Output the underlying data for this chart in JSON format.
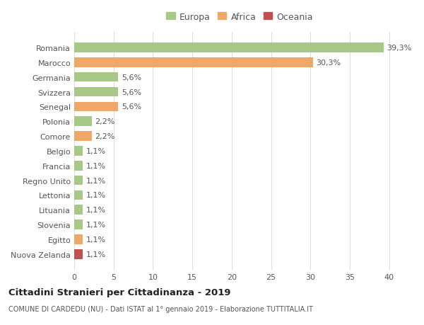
{
  "categories": [
    "Nuova Zelanda",
    "Egitto",
    "Slovenia",
    "Lituania",
    "Lettonia",
    "Regno Unito",
    "Francia",
    "Belgio",
    "Comore",
    "Polonia",
    "Senegal",
    "Svizzera",
    "Germania",
    "Marocco",
    "Romania"
  ],
  "values": [
    1.1,
    1.1,
    1.1,
    1.1,
    1.1,
    1.1,
    1.1,
    1.1,
    2.2,
    2.2,
    5.6,
    5.6,
    5.6,
    30.3,
    39.3
  ],
  "colors": [
    "#c0504d",
    "#f0a868",
    "#a8c888",
    "#a8c888",
    "#a8c888",
    "#a8c888",
    "#a8c888",
    "#a8c888",
    "#f0a868",
    "#a8c888",
    "#f0a868",
    "#a8c888",
    "#a8c888",
    "#f0a868",
    "#a8c888"
  ],
  "labels": [
    "1,1%",
    "1,1%",
    "1,1%",
    "1,1%",
    "1,1%",
    "1,1%",
    "1,1%",
    "1,1%",
    "2,2%",
    "2,2%",
    "5,6%",
    "5,6%",
    "5,6%",
    "30,3%",
    "39,3%"
  ],
  "legend": [
    {
      "label": "Europa",
      "color": "#a8c888"
    },
    {
      "label": "Africa",
      "color": "#f0a868"
    },
    {
      "label": "Oceania",
      "color": "#c0504d"
    }
  ],
  "title": "Cittadini Stranieri per Cittadinanza - 2019",
  "subtitle": "COMUNE DI CARDEDU (NU) - Dati ISTAT al 1° gennaio 2019 - Elaborazione TUTTITALIA.IT",
  "xlim": [
    0,
    42
  ],
  "xticks": [
    0,
    5,
    10,
    15,
    20,
    25,
    30,
    35,
    40
  ],
  "background_color": "#ffffff",
  "grid_color": "#dddddd",
  "bar_height": 0.65,
  "label_fontsize": 8,
  "ytick_fontsize": 8,
  "xtick_fontsize": 8
}
